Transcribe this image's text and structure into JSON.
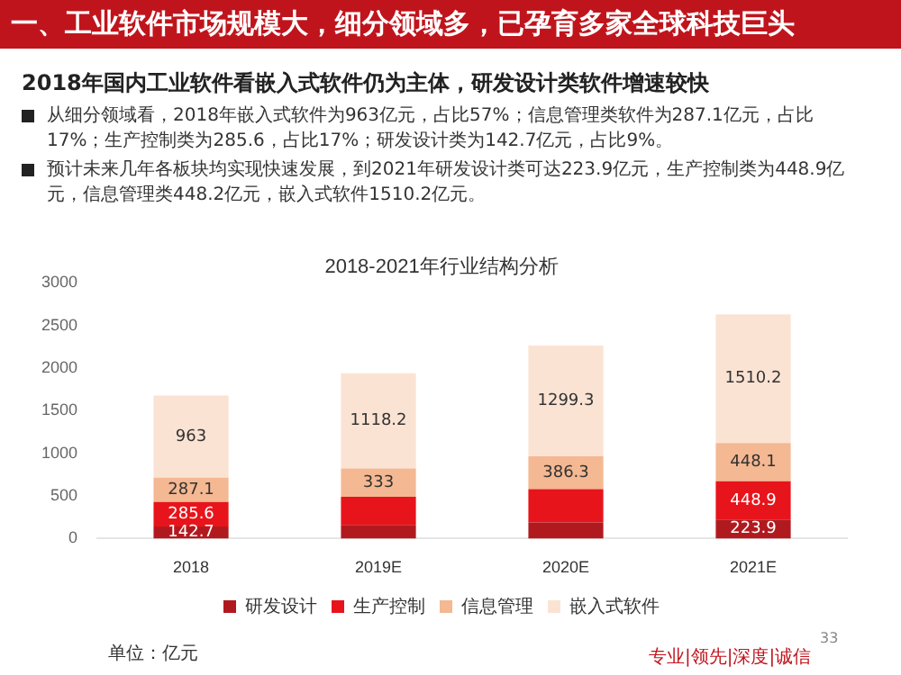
{
  "chart_data": {
    "type": "bar",
    "title": "2018-2021年行业结构分析",
    "stacked": true,
    "categories": [
      "2018",
      "2019E",
      "2020E",
      "2021E"
    ],
    "series": [
      {
        "name": "研发设计",
        "color": "#b01a1f",
        "values": [
          142.7,
          160,
          190,
          223.9
        ],
        "value_labels": [
          "142.7",
          null,
          null,
          "223.9"
        ]
      },
      {
        "name": "生产控制",
        "color": "#e8141b",
        "values": [
          285.6,
          330,
          390,
          448.9
        ],
        "value_labels": [
          "285.6",
          null,
          null,
          "448.9"
        ]
      },
      {
        "name": "信息管理",
        "color": "#f4b892",
        "values": [
          287.1,
          333,
          386.3,
          448.1
        ],
        "value_labels": [
          "287.1",
          "333",
          "386.3",
          "448.1"
        ]
      },
      {
        "name": "嵌入式软件",
        "color": "#fbe3d3",
        "values": [
          963,
          1118.2,
          1299.3,
          1510.2
        ],
        "value_labels": [
          "963",
          "1118.2",
          "1299.3",
          "1510.2"
        ]
      }
    ],
    "ylim": [
      0,
      3000
    ],
    "yticks": [
      0,
      500,
      1000,
      1500,
      2000,
      2500,
      3000
    ],
    "grid": false,
    "legend": "bottom",
    "annotations": [
      "一、工业软件市场规模大，细分领域多，已孕育多家全球科技巨头",
      "2018年国内工业软件看嵌入式软件仍为主体，研发设计类软件增速较快",
      "从细分领域看，2018年嵌入式软件为963亿元，占比57%；信息管理类软件为287.1亿元，占比17%；生产控制类为285.6，占比17%；研发设计类为142.7亿元，占比9%。",
      "预计未来几年各板块均实现快速发展，到2021年研发设计类可达223.9亿元，生产控制类为448.9亿元，信息管理类448.2亿元，嵌入式软件1510.2亿元。",
      "单位：亿元",
      "专业|领先|深度|诚信",
      "33"
    ]
  }
}
